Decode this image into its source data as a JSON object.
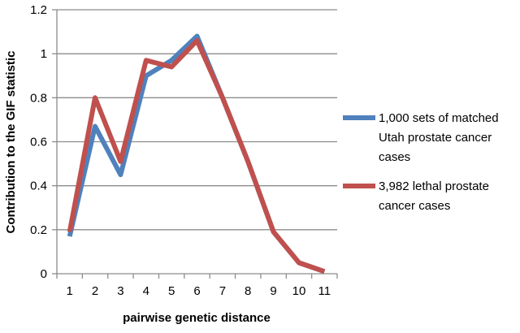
{
  "chart_data": {
    "type": "line",
    "categories": [
      "1",
      "2",
      "3",
      "4",
      "5",
      "6",
      "7",
      "8",
      "9",
      "10",
      "11"
    ],
    "series": [
      {
        "name": "1,000 sets of matched Utah prostate cancer cases",
        "legend_lines": [
          "1,000 sets of matched",
          "Utah prostate cancer",
          "cases"
        ],
        "color": "#4f81bd",
        "values": [
          0.17,
          0.67,
          0.45,
          0.9,
          0.97,
          1.08,
          0.8,
          0.51,
          0.19,
          0.05,
          0.01
        ]
      },
      {
        "name": "3,982 lethal prostate cancer cases",
        "legend_lines": [
          "3,982 lethal prostate",
          "cancer cases"
        ],
        "color": "#c0504d",
        "values": [
          0.19,
          0.8,
          0.51,
          0.97,
          0.94,
          1.06,
          0.8,
          0.51,
          0.19,
          0.05,
          0.01
        ]
      }
    ],
    "title": "",
    "xlabel": "pairwise genetic distance",
    "ylabel": "Contribution to the GIF statistic",
    "ylim": [
      0,
      1.2
    ],
    "yticks": [
      0,
      0.2,
      0.4,
      0.6,
      0.8,
      1,
      1.2
    ],
    "ytick_labels": [
      "0",
      "0.2",
      "0.4",
      "0.6",
      "0.8",
      "1",
      "1.2"
    ],
    "grid": "horizontal major gridlines",
    "legend_position": "right"
  }
}
